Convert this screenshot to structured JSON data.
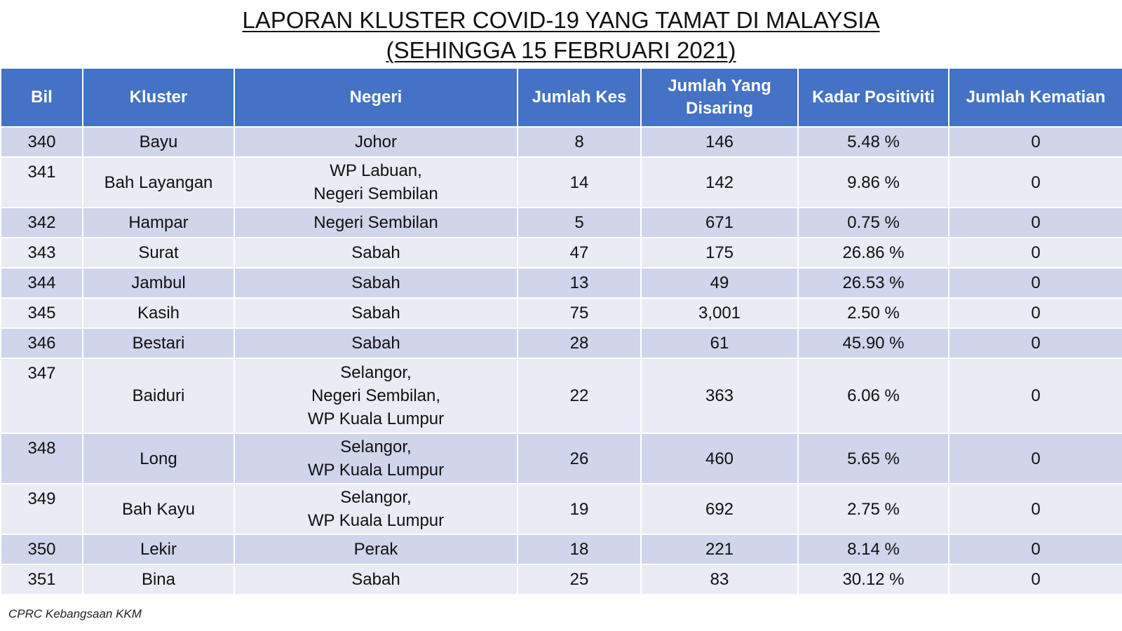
{
  "title": {
    "line1": "LAPORAN KLUSTER COVID-19 YANG TAMAT DI MALAYSIA",
    "line2": "(SEHINGGA 15 FEBRUARI 2021)"
  },
  "headers": {
    "bil": "Bil",
    "kluster": "Kluster",
    "negeri": "Negeri",
    "jumlah_kes": "Jumlah Kes",
    "jumlah_disaring_line1": "Jumlah Yang",
    "jumlah_disaring_line2": "Disaring",
    "kadar_positiviti": "Kadar Positiviti",
    "jumlah_kematian": "Jumlah Kematian"
  },
  "rows": [
    {
      "bil": "340",
      "kluster": "Bayu",
      "negeri": [
        "Johor"
      ],
      "kes": "8",
      "disaring": "146",
      "positiviti": "5.48 %",
      "kematian": "0"
    },
    {
      "bil": "341",
      "kluster": "Bah Layangan",
      "negeri": [
        "WP Labuan,",
        "Negeri Sembilan"
      ],
      "kes": "14",
      "disaring": "142",
      "positiviti": "9.86 %",
      "kematian": "0"
    },
    {
      "bil": "342",
      "kluster": "Hampar",
      "negeri": [
        "Negeri Sembilan"
      ],
      "kes": "5",
      "disaring": "671",
      "positiviti": "0.75 %",
      "kematian": "0"
    },
    {
      "bil": "343",
      "kluster": "Surat",
      "negeri": [
        "Sabah"
      ],
      "kes": "47",
      "disaring": "175",
      "positiviti": "26.86 %",
      "kematian": "0"
    },
    {
      "bil": "344",
      "kluster": "Jambul",
      "negeri": [
        "Sabah"
      ],
      "kes": "13",
      "disaring": "49",
      "positiviti": "26.53 %",
      "kematian": "0"
    },
    {
      "bil": "345",
      "kluster": "Kasih",
      "negeri": [
        "Sabah"
      ],
      "kes": "75",
      "disaring": "3,001",
      "positiviti": "2.50 %",
      "kematian": "0"
    },
    {
      "bil": "346",
      "kluster": "Bestari",
      "negeri": [
        "Sabah"
      ],
      "kes": "28",
      "disaring": "61",
      "positiviti": "45.90 %",
      "kematian": "0"
    },
    {
      "bil": "347",
      "kluster": "Baiduri",
      "negeri": [
        "Selangor,",
        "Negeri Sembilan,",
        "WP Kuala Lumpur"
      ],
      "kes": "22",
      "disaring": "363",
      "positiviti": "6.06 %",
      "kematian": "0"
    },
    {
      "bil": "348",
      "kluster": "Long",
      "negeri": [
        "Selangor,",
        "WP Kuala Lumpur"
      ],
      "kes": "26",
      "disaring": "460",
      "positiviti": "5.65 %",
      "kematian": "0"
    },
    {
      "bil": "349",
      "kluster": "Bah Kayu",
      "negeri": [
        "Selangor,",
        "WP Kuala Lumpur"
      ],
      "kes": "19",
      "disaring": "692",
      "positiviti": "2.75 %",
      "kematian": "0"
    },
    {
      "bil": "350",
      "kluster": "Lekir",
      "negeri": [
        "Perak"
      ],
      "kes": "18",
      "disaring": "221",
      "positiviti": "8.14 %",
      "kematian": "0"
    },
    {
      "bil": "351",
      "kluster": "Bina",
      "negeri": [
        "Sabah"
      ],
      "kes": "25",
      "disaring": "83",
      "positiviti": "30.12 %",
      "kematian": "0"
    }
  ],
  "footer": "CPRC Kebangsaan KKM",
  "colors": {
    "header_bg": "#4472c4",
    "row_odd": "#cfd5ea",
    "row_even": "#e9ebf5"
  }
}
